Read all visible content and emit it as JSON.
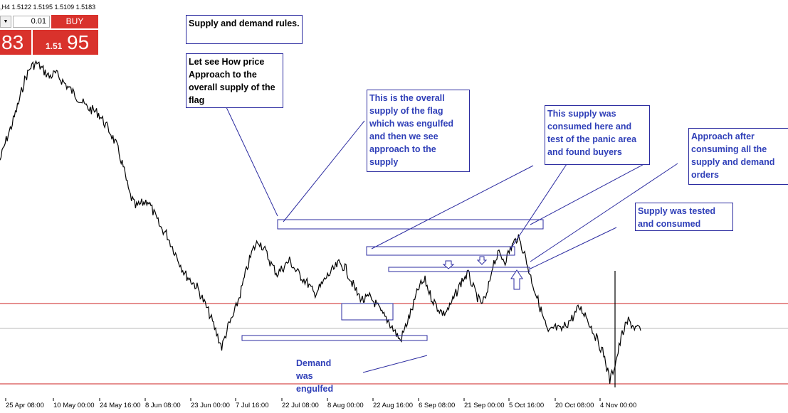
{
  "header": {
    "symbol_text": ",H4  1.5122 1.5195 1.5109 1.5183"
  },
  "trade_panel": {
    "lot_value": "0.01",
    "buy_label": "BUY",
    "sell_price_big": "83",
    "buy_price_small": "1.51",
    "buy_price_big": "95",
    "accent_color": "#d9322c"
  },
  "annotations": {
    "note1": "Supply and demand rules.",
    "note2": "Let see How price Approach to the overall supply of the flag",
    "note3": "This is the overall supply of the flag which was engulfed and then we see approach to the supply",
    "note4": "This supply was consumed here and test of the panic area and found buyers",
    "note5": "Approach after consuming all the supply and demand orders",
    "note6": "Supply  was tested and consumed",
    "note7": "Demand was engulfed"
  },
  "chart_data": {
    "type": "line",
    "title": "",
    "xlabel": "",
    "ylabel": "",
    "x_ticks": [
      "25 Apr 08:00",
      "10 May 00:00",
      "24 May 16:00",
      "8 Jun 08:00",
      "23 Jun 00:00",
      "7 Jul 16:00",
      "22 Jul 08:00",
      "8 Aug 00:00",
      "22 Aug 16:00",
      "6 Sep 08:00",
      "21 Sep 00:00",
      "5 Oct 16:00",
      "20 Oct 08:00",
      "4 Nov 00:00"
    ],
    "x_tick_positions_index": [
      0,
      1,
      2,
      3,
      4,
      5,
      6,
      7,
      8,
      9,
      10,
      11,
      12,
      13
    ],
    "series": [
      {
        "values": [
          0.68,
          0.74,
          0.79,
          0.85,
          0.92,
          0.96,
          0.97,
          0.95,
          0.93,
          0.94,
          0.92,
          0.9,
          0.88,
          0.86,
          0.84,
          0.83,
          0.82,
          0.79,
          0.76,
          0.72,
          0.66,
          0.58,
          0.54,
          0.55,
          0.56,
          0.52,
          0.48,
          0.46,
          0.42,
          0.38,
          0.34,
          0.32,
          0.3,
          0.26,
          0.22,
          0.17,
          0.12,
          0.18,
          0.22,
          0.28,
          0.35,
          0.41,
          0.44,
          0.41,
          0.37,
          0.34,
          0.36,
          0.38,
          0.35,
          0.33,
          0.31,
          0.28,
          0.3,
          0.33,
          0.35,
          0.37,
          0.36,
          0.32,
          0.28,
          0.26,
          0.27,
          0.25,
          0.22,
          0.2,
          0.17,
          0.14,
          0.19,
          0.24,
          0.3,
          0.32,
          0.27,
          0.24,
          0.22,
          0.24,
          0.28,
          0.32,
          0.34,
          0.29,
          0.25,
          0.27,
          0.37,
          0.4,
          0.38,
          0.42,
          0.45,
          0.41,
          0.34,
          0.28,
          0.22,
          0.16,
          0.18,
          0.17,
          0.19,
          0.21,
          0.24,
          0.22,
          0.18,
          0.14,
          0.1,
          0.02,
          0.08,
          0.16,
          0.2,
          0.18,
          0.17
        ]
      }
    ],
    "y_reference_lines": {
      "upper_red": 0.22,
      "gray": 0.18,
      "lower_red": 0.0
    },
    "line_color": "#000000",
    "grid": false
  }
}
